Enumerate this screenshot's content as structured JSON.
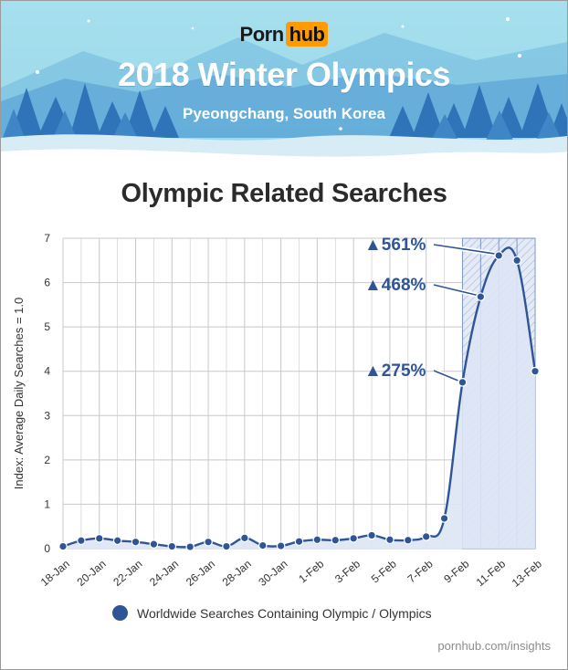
{
  "header": {
    "logo_left": "Porn",
    "logo_right": "hub",
    "title": "2018 Winter Olympics",
    "subtitle": "Pyeongchang, South Korea"
  },
  "colors": {
    "series": "#2f5597",
    "area_fill": "#dde6f5",
    "grid": "#c8c8c8",
    "sky": "#9fdbea",
    "logo_accent": "#ff9a00"
  },
  "chart_data": {
    "type": "area",
    "title": "Olympic Related Searches",
    "ylabel": "Index: Average Daily Searches = 1.0",
    "ylim": [
      0,
      7
    ],
    "yticks": [
      0,
      1,
      2,
      3,
      4,
      5,
      6,
      7
    ],
    "grid": true,
    "legend_position": "bottom",
    "x": [
      "18-Jan",
      "19-Jan",
      "20-Jan",
      "21-Jan",
      "22-Jan",
      "23-Jan",
      "24-Jan",
      "25-Jan",
      "26-Jan",
      "27-Jan",
      "28-Jan",
      "29-Jan",
      "30-Jan",
      "31-Jan",
      "1-Feb",
      "2-Feb",
      "3-Feb",
      "4-Feb",
      "5-Feb",
      "6-Feb",
      "7-Feb",
      "8-Feb",
      "9-Feb",
      "10-Feb",
      "11-Feb",
      "12-Feb",
      "13-Feb"
    ],
    "xtick_labels": [
      "18-Jan",
      "20-Jan",
      "22-Jan",
      "24-Jan",
      "26-Jan",
      "28-Jan",
      "30-Jan",
      "1-Feb",
      "3-Feb",
      "5-Feb",
      "7-Feb",
      "9-Feb",
      "11-Feb",
      "13-Feb"
    ],
    "series": [
      {
        "name": "Worldwide Searches Containing Olympic / Olympics",
        "values": [
          0.05,
          0.18,
          0.23,
          0.18,
          0.15,
          0.1,
          0.05,
          0.04,
          0.15,
          0.05,
          0.24,
          0.07,
          0.06,
          0.16,
          0.2,
          0.19,
          0.23,
          0.3,
          0.2,
          0.19,
          0.27,
          0.68,
          3.75,
          5.68,
          6.61,
          6.5,
          4.0
        ]
      }
    ],
    "highlight_range": [
      "9-Feb",
      "13-Feb"
    ],
    "annotations": [
      {
        "text": "▲561%",
        "x": "11-Feb"
      },
      {
        "text": "▲468%",
        "x": "10-Feb"
      },
      {
        "text": "▲275%",
        "x": "9-Feb"
      }
    ]
  },
  "footer": {
    "source": "pornhub.com/insights"
  }
}
